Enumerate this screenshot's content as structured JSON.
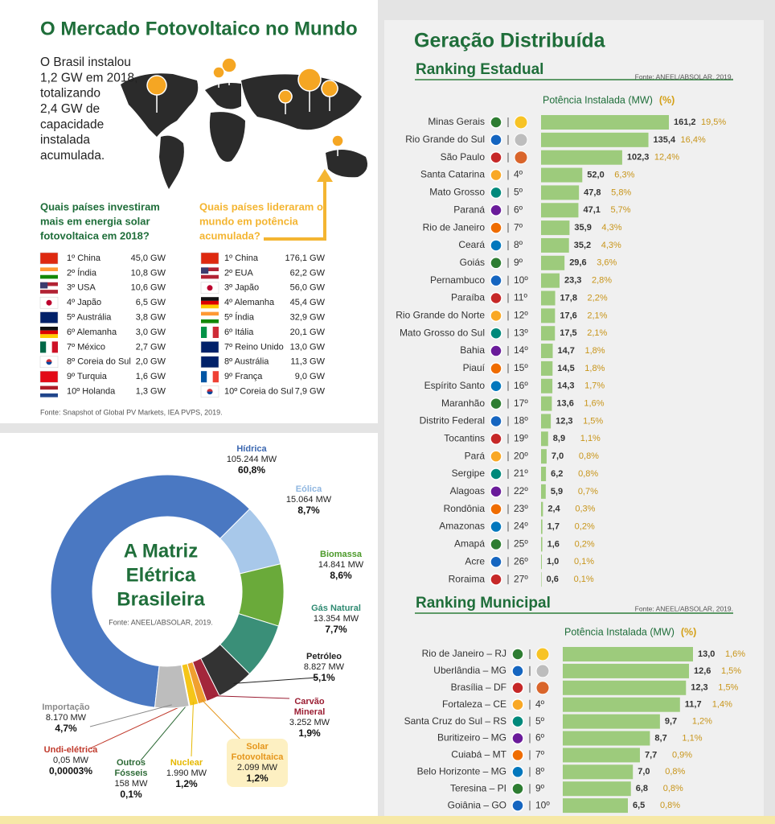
{
  "world": {
    "title": "O Mercado Fotovoltaico no Mundo",
    "intro": [
      "O Brasil instalou",
      "1,2 GW em 2018,",
      "totalizando",
      "2,4 GW de",
      "capacidade",
      "instalada",
      "acumulada."
    ],
    "invest": {
      "question": [
        "Quais países investiram",
        "mais em energia solar",
        "fotovoltaica em 2018?"
      ],
      "rows": [
        [
          "1º China",
          "45,0 GW"
        ],
        [
          "2º Índia",
          "10,8 GW"
        ],
        [
          "3º USA",
          "10,6 GW"
        ],
        [
          "4º Japão",
          "6,5 GW"
        ],
        [
          "5º Austrália",
          "3,8 GW"
        ],
        [
          "6º Alemanha",
          "3,0 GW"
        ],
        [
          "7º México",
          "2,7 GW"
        ],
        [
          "8º Coreia do Sul",
          "2,0 GW"
        ],
        [
          "9º Turquia",
          "1,6 GW"
        ],
        [
          "10º Holanda",
          "1,3 GW"
        ]
      ]
    },
    "leaders": {
      "question": [
        "Quais países lideraram o",
        "mundo em potência",
        "acumulada?"
      ],
      "rows": [
        [
          "1º China",
          "176,1 GW"
        ],
        [
          "2º EUA",
          "62,2 GW"
        ],
        [
          "3º Japão",
          "56,0 GW"
        ],
        [
          "4º Alemanha",
          "45,4 GW"
        ],
        [
          "5º Índia",
          "32,9 GW"
        ],
        [
          "6º Itália",
          "20,1 GW"
        ],
        [
          "7º Reino Unido",
          "13,0 GW"
        ],
        [
          "8º Austrália",
          "11,3 GW"
        ],
        [
          "9º França",
          "9,0 GW"
        ],
        [
          "10º Coreia do Sul",
          "7,9 GW"
        ]
      ]
    },
    "source": "Fonte: Snapshot of Global PV Markets, IEA PVPS, 2019."
  },
  "header": {
    "title": "Geração Distribuída"
  },
  "chart_data": [
    {
      "type": "donut",
      "title": [
        "A Matriz",
        "Elétrica",
        "Brasileira"
      ],
      "source": "Fonte: ANEEL/ABSOLAR, 2019.",
      "categories": [
        "Hídrica",
        "Eólica",
        "Biomassa",
        "Gás Natural",
        "Petróleo",
        "Carvão Mineral",
        "Solar Fotovoltaica",
        "Nuclear",
        "Outros Fósseis",
        "Undi-elétrica",
        "Importação"
      ],
      "values": [
        60.8,
        8.7,
        8.6,
        7.7,
        5.1,
        1.9,
        1.2,
        1.2,
        0.1,
        3e-05,
        4.7
      ],
      "value_labels": [
        "60,8%",
        "8,7%",
        "8,6%",
        "7,7%",
        "5,1%",
        "1,9%",
        "1,2%",
        "1,2%",
        "0,1%",
        "0,00003%",
        "4,7%"
      ],
      "mw_labels": [
        "105.244 MW",
        "15.064 MW",
        "14.841 MW",
        "13.354 MW",
        "8.827 MW",
        "3.252 MW",
        "2.099 MW",
        "1.990 MW",
        "158 MW",
        "0,05 MW",
        "8.170 MW"
      ],
      "colors": [
        "#4a78c2",
        "#a8c8ea",
        "#6aaa3a",
        "#3a8f78",
        "#333333",
        "#a3263b",
        "#f0a030",
        "#f5c518",
        "#2d6a36",
        "#c0392b",
        "#bdbdbd"
      ]
    },
    {
      "type": "hbar",
      "title": "Ranking Estadual",
      "source": "Fonte: ANEEL/ABSOLAR, 2019.",
      "axis_label": "Potência Instalada (MW)",
      "share_label": "(%)",
      "color": "#9dcb7c",
      "categories": [
        "Minas Gerais",
        "Rio Grande do Sul",
        "São Paulo",
        "Santa Catarina",
        "Mato Grosso",
        "Paraná",
        "Rio de Janeiro",
        "Ceará",
        "Goiás",
        "Pernambuco",
        "Paraíba",
        "Rio Grande do Norte",
        "Mato Grosso do Sul",
        "Bahia",
        "Piauí",
        "Espírito Santo",
        "Maranhão",
        "Distrito Federal",
        "Tocantins",
        "Pará",
        "Sergipe",
        "Alagoas",
        "Rondônia",
        "Amazonas",
        "Amapá",
        "Acre",
        "Roraima"
      ],
      "ranks": [
        null,
        null,
        null,
        "4º",
        "5º",
        "6º",
        "7º",
        "8º",
        "9º",
        "10º",
        "11º",
        "12º",
        "13º",
        "14º",
        "15º",
        "16º",
        "17º",
        "18º",
        "19º",
        "20º",
        "21º",
        "22º",
        "23º",
        "24º",
        "25º",
        "26º",
        "27º"
      ],
      "values": [
        161.2,
        135.4,
        102.3,
        52.0,
        47.8,
        47.1,
        35.9,
        35.2,
        29.6,
        23.3,
        17.8,
        17.6,
        17.5,
        14.7,
        14.5,
        14.3,
        13.6,
        12.3,
        8.9,
        7.0,
        6.2,
        5.9,
        2.4,
        1.7,
        1.6,
        1.0,
        0.6
      ],
      "value_labels": [
        "161,2",
        "135,4",
        "102,3",
        "52,0",
        "47,8",
        "47,1",
        "35,9",
        "35,2",
        "29,6",
        "23,3",
        "17,8",
        "17,6",
        "17,5",
        "14,7",
        "14,5",
        "14,3",
        "13,6",
        "12,3",
        "8,9",
        "7,0",
        "6,2",
        "5,9",
        "2,4",
        "1,7",
        "1,6",
        "1,0",
        "0,6"
      ],
      "shares": [
        19.5,
        16.4,
        12.4,
        6.3,
        5.8,
        5.7,
        4.3,
        4.3,
        3.6,
        2.8,
        2.2,
        2.1,
        2.1,
        1.8,
        1.8,
        1.7,
        1.6,
        1.5,
        1.1,
        0.8,
        0.8,
        0.7,
        0.3,
        0.2,
        0.2,
        0.1,
        0.1
      ],
      "share_labels": [
        "19,5%",
        "16,4%",
        "12,4%",
        "6,3%",
        "5,8%",
        "5,7%",
        "4,3%",
        "4,3%",
        "3,6%",
        "2,8%",
        "2,2%",
        "2,1%",
        "2,1%",
        "1,8%",
        "1,8%",
        "1,7%",
        "1,6%",
        "1,5%",
        "1,1%",
        "0,8%",
        "0,8%",
        "0,7%",
        "0,3%",
        "0,2%",
        "0,2%",
        "0,1%",
        "0,1%"
      ]
    },
    {
      "type": "hbar",
      "title": "Ranking Municipal",
      "source": "Fonte: ANEEL/ABSOLAR, 2019.",
      "axis_label": "Potência Instalada (MW)",
      "share_label": "(%)",
      "color": "#9dcb7c",
      "categories": [
        "Rio de Janeiro – RJ",
        "Uberlândia – MG",
        "Brasília – DF",
        "Fortaleza – CE",
        "Santa Cruz do Sul – RS",
        "Buritizeiro – MG",
        "Cuiabá – MT",
        "Belo Horizonte – MG",
        "Teresina – PI",
        "Goiânia – GO"
      ],
      "ranks": [
        null,
        null,
        null,
        "4º",
        "5º",
        "6º",
        "7º",
        "8º",
        "9º",
        "10º"
      ],
      "values": [
        13.0,
        12.6,
        12.3,
        11.7,
        9.7,
        8.7,
        7.7,
        7.0,
        6.8,
        6.5
      ],
      "value_labels": [
        "13,0",
        "12,6",
        "12,3",
        "11,7",
        "9,7",
        "8,7",
        "7,7",
        "7,0",
        "6,8",
        "6,5"
      ],
      "shares": [
        1.6,
        1.5,
        1.5,
        1.4,
        1.2,
        1.1,
        0.9,
        0.8,
        0.8,
        0.8
      ],
      "share_labels": [
        "1,6%",
        "1,5%",
        "1,5%",
        "1,4%",
        "1,2%",
        "1,1%",
        "0,9%",
        "0,8%",
        "0,8%",
        "0,8%"
      ]
    }
  ]
}
